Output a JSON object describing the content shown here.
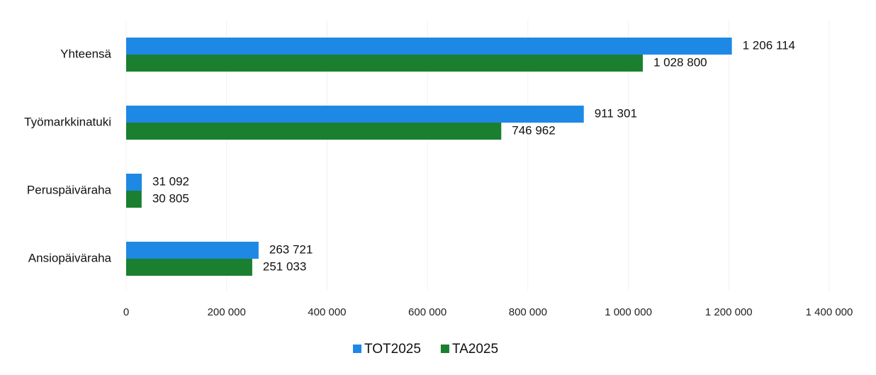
{
  "chart_data": {
    "type": "hbar",
    "categories": [
      "Yhteensä",
      "Työmarkkinatuki",
      "Peruspäiväraha",
      "Ansiopäiväraha"
    ],
    "series": [
      {
        "name": "TOT2025",
        "color": "#1e88e5",
        "values": [
          1206114,
          911301,
          31092,
          263721
        ],
        "value_labels": [
          "1 206 114",
          "911 301",
          "31 092",
          "263 721"
        ]
      },
      {
        "name": "TA2025",
        "color": "#1a7f2e",
        "values": [
          1028800,
          746962,
          30805,
          251033
        ],
        "value_labels": [
          "1 028 800",
          "746 962",
          "30 805",
          "251 033"
        ]
      }
    ],
    "xlim": [
      0,
      1400000
    ],
    "xticks": [
      0,
      {
        "value": 200000,
        "label": "200 000"
      },
      {
        "value": 400000,
        "label": "400 000"
      },
      {
        "value": 600000,
        "label": "600 000"
      },
      {
        "value": 800000,
        "label": "800 000"
      },
      {
        "value": 1000000,
        "label": "1 000 000"
      },
      {
        "value": 1200000,
        "label": "1 200 000"
      },
      {
        "value": 1400000,
        "label": "1 400 000"
      }
    ],
    "legend": "bottom"
  }
}
